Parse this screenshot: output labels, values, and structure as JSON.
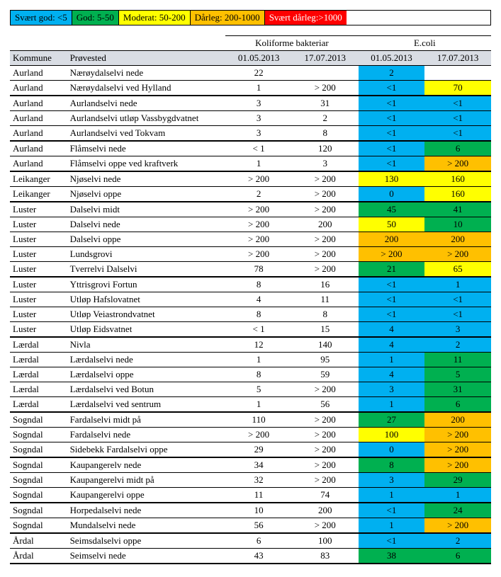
{
  "legend": [
    {
      "label": "Svært god: <5",
      "bg": "#00b0f0"
    },
    {
      "label": "God: 5-50",
      "bg": "#00b050"
    },
    {
      "label": "Moderat: 50-200",
      "bg": "#ffff00"
    },
    {
      "label": "Dårleg: 200-1000",
      "bg": "#ffc000"
    },
    {
      "label": "Svært dårleg:>1000",
      "bg": "#ff0000",
      "color": "#ffffff"
    }
  ],
  "header": {
    "group1": "Koliforme bakteriar",
    "group2": "E.coli",
    "kommune": "Kommune",
    "provested": "Prøvested",
    "d1": "01.05.2013",
    "d2": "17.07.2013"
  },
  "rows": [
    {
      "k": "Aurland",
      "s": "Nærøydalselvi nede",
      "c1": "22",
      "c2": "",
      "e1": "2",
      "e1c": "b-blue",
      "e2": "",
      "e2c": ""
    },
    {
      "k": "Aurland",
      "s": "Nærøydalselvi ved Hylland",
      "c1": "1",
      "c2": "> 200",
      "e1": "<1",
      "e1c": "b-blue",
      "e2": "70",
      "e2c": "b-yellow",
      "sep": true
    },
    {
      "k": "Aurland",
      "s": "Aurlandselvi nede",
      "c1": "3",
      "c2": "31",
      "e1": "<1",
      "e1c": "b-blue",
      "e2": "<1",
      "e2c": "b-blue"
    },
    {
      "k": "Aurland",
      "s": "Aurlandselvi utløp Vassbygdvatnet",
      "c1": "3",
      "c2": "2",
      "e1": "<1",
      "e1c": "b-blue",
      "e2": "<1",
      "e2c": "b-blue"
    },
    {
      "k": "Aurland",
      "s": "Aurlandselvi ved Tokvam",
      "c1": "3",
      "c2": "8",
      "e1": "<1",
      "e1c": "b-blue",
      "e2": "<1",
      "e2c": "b-blue",
      "sep": true
    },
    {
      "k": "Aurland",
      "s": "Flåmselvi nede",
      "c1": "< 1",
      "c2": "120",
      "e1": "<1",
      "e1c": "b-blue",
      "e2": "6",
      "e2c": "b-green"
    },
    {
      "k": "Aurland",
      "s": "Flåmselvi oppe ved kraftverk",
      "c1": "1",
      "c2": "3",
      "e1": "<1",
      "e1c": "b-blue",
      "e2": "> 200",
      "e2c": "b-orange",
      "sep": true
    },
    {
      "k": "Leikanger",
      "s": "Njøselvi nede",
      "c1": "> 200",
      "c2": "> 200",
      "e1": "130",
      "e1c": "b-yellow",
      "e2": "160",
      "e2c": "b-yellow"
    },
    {
      "k": "Leikanger",
      "s": "Njøselvi oppe",
      "c1": "2",
      "c2": "> 200",
      "e1": "0",
      "e1c": "b-blue",
      "e2": "160",
      "e2c": "b-yellow",
      "sep": true
    },
    {
      "k": "Luster",
      "s": "Dalselvi midt",
      "c1": "> 200",
      "c2": "> 200",
      "e1": "45",
      "e1c": "b-green",
      "e2": "41",
      "e2c": "b-green"
    },
    {
      "k": "Luster",
      "s": "Dalselvi nede",
      "c1": "> 200",
      "c2": "200",
      "e1": "50",
      "e1c": "b-yellow",
      "e2": "10",
      "e2c": "b-green"
    },
    {
      "k": "Luster",
      "s": "Dalselvi oppe",
      "c1": "> 200",
      "c2": "> 200",
      "e1": "200",
      "e1c": "b-orange",
      "e2": "200",
      "e2c": "b-orange"
    },
    {
      "k": "Luster",
      "s": "Lundsgrovi",
      "c1": "> 200",
      "c2": "> 200",
      "e1": "> 200",
      "e1c": "b-orange",
      "e2": "> 200",
      "e2c": "b-orange"
    },
    {
      "k": "Luster",
      "s": "Tverrelvi Dalselvi",
      "c1": "78",
      "c2": "> 200",
      "e1": "21",
      "e1c": "b-green",
      "e2": "65",
      "e2c": "b-yellow",
      "sep": true
    },
    {
      "k": "Luster",
      "s": "Yttrisgrovi Fortun",
      "c1": "8",
      "c2": "16",
      "e1": "<1",
      "e1c": "b-blue",
      "e2": "1",
      "e2c": "b-blue"
    },
    {
      "k": "Luster",
      "s": "Utløp Hafslovatnet",
      "c1": "4",
      "c2": "11",
      "e1": "<1",
      "e1c": "b-blue",
      "e2": "<1",
      "e2c": "b-blue"
    },
    {
      "k": "Luster",
      "s": "Utløp Veiastrondvatnet",
      "c1": "8",
      "c2": "8",
      "e1": "<1",
      "e1c": "b-blue",
      "e2": "<1",
      "e2c": "b-blue"
    },
    {
      "k": "Luster",
      "s": "Utløp Eidsvatnet",
      "c1": "< 1",
      "c2": "15",
      "e1": "4",
      "e1c": "b-blue",
      "e2": "3",
      "e2c": "b-blue",
      "sep": true
    },
    {
      "k": "Lærdal",
      "s": "Nivla",
      "c1": "12",
      "c2": "140",
      "e1": "4",
      "e1c": "b-blue",
      "e2": "2",
      "e2c": "b-blue"
    },
    {
      "k": "Lærdal",
      "s": "Lærdalselvi nede",
      "c1": "1",
      "c2": "95",
      "e1": "1",
      "e1c": "b-blue",
      "e2": "11",
      "e2c": "b-green"
    },
    {
      "k": "Lærdal",
      "s": "Lærdalselvi oppe",
      "c1": "8",
      "c2": "59",
      "e1": "4",
      "e1c": "b-blue",
      "e2": "5",
      "e2c": "b-green"
    },
    {
      "k": "Lærdal",
      "s": "Lærdalselvi ved Botun",
      "c1": "5",
      "c2": "> 200",
      "e1": "3",
      "e1c": "b-blue",
      "e2": "31",
      "e2c": "b-green"
    },
    {
      "k": "Lærdal",
      "s": "Lærdalselvi ved sentrum",
      "c1": "1",
      "c2": "56",
      "e1": "1",
      "e1c": "b-blue",
      "e2": "6",
      "e2c": "b-green",
      "sep": true
    },
    {
      "k": "Sogndal",
      "s": "Fardalselvi midt på",
      "c1": "110",
      "c2": "> 200",
      "e1": "27",
      "e1c": "b-green",
      "e2": "200",
      "e2c": "b-orange"
    },
    {
      "k": "Sogndal",
      "s": "Fardalselvi nede",
      "c1": "> 200",
      "c2": "> 200",
      "e1": "100",
      "e1c": "b-yellow",
      "e2": "> 200",
      "e2c": "b-orange"
    },
    {
      "k": "Sogndal",
      "s": "Sidebekk Fardalselvi oppe",
      "c1": "29",
      "c2": "> 200",
      "e1": "0",
      "e1c": "b-blue",
      "e2": "> 200",
      "e2c": "b-orange",
      "sep": true
    },
    {
      "k": "Sogndal",
      "s": "Kaupangerelv nede",
      "c1": "34",
      "c2": "> 200",
      "e1": "8",
      "e1c": "b-green",
      "e2": "> 200",
      "e2c": "b-orange"
    },
    {
      "k": "Sogndal",
      "s": "Kaupangerelvi midt på",
      "c1": "32",
      "c2": "> 200",
      "e1": "3",
      "e1c": "b-blue",
      "e2": "29",
      "e2c": "b-green"
    },
    {
      "k": "Sogndal",
      "s": "Kaupangerelvi oppe",
      "c1": "11",
      "c2": "74",
      "e1": "1",
      "e1c": "b-blue",
      "e2": "1",
      "e2c": "b-blue",
      "sep": true
    },
    {
      "k": "Sogndal",
      "s": "Horpedalselvi nede",
      "c1": "10",
      "c2": "200",
      "e1": "<1",
      "e1c": "b-blue",
      "e2": "24",
      "e2c": "b-green"
    },
    {
      "k": "Sogndal",
      "s": "Mundalselvi nede",
      "c1": "56",
      "c2": "> 200",
      "e1": "1",
      "e1c": "b-blue",
      "e2": "> 200",
      "e2c": "b-orange",
      "sep": true
    },
    {
      "k": "Årdal",
      "s": "Seimsdalselvi oppe",
      "c1": "6",
      "c2": "100",
      "e1": "<1",
      "e1c": "b-blue",
      "e2": "2",
      "e2c": "b-blue"
    },
    {
      "k": "Årdal",
      "s": "Seimselvi nede",
      "c1": "43",
      "c2": "83",
      "e1": "38",
      "e1c": "b-green",
      "e2": "6",
      "e2c": "b-green",
      "sep": true
    }
  ]
}
